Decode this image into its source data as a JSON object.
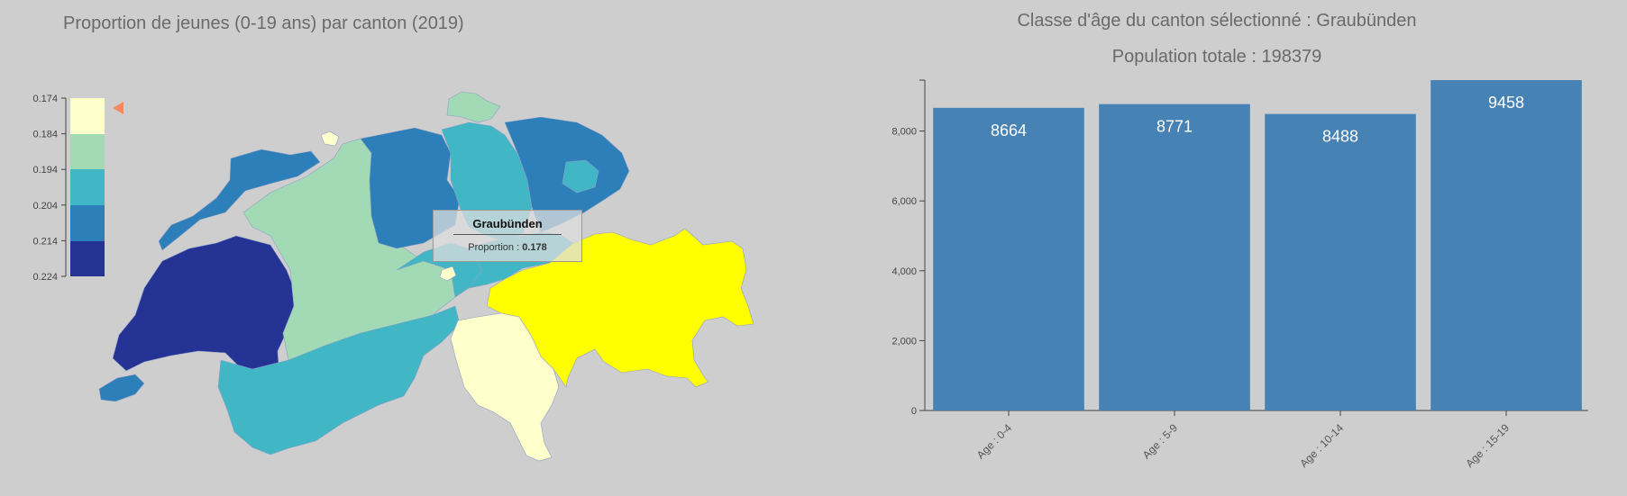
{
  "map": {
    "title": "Proportion de jeunes (0-19 ans) par canton (2019)",
    "legend": {
      "ticks": [
        "0.174",
        "0.184",
        "0.194",
        "0.204",
        "0.214",
        "0.224"
      ],
      "colors": [
        "#ffffcc",
        "#a1dab4",
        "#41b6c4",
        "#2c7fb8",
        "#253494"
      ],
      "marker_color": "#f58a5e",
      "marker_value": 0.178
    },
    "highlight_color": "#ffff00",
    "tooltip": {
      "title": "Graubünden",
      "label": "Proportion : ",
      "value": "0.178"
    }
  },
  "chart": {
    "title_line1": "Classe d'âge du canton sélectionné : Graubünden",
    "title_line2": "Population totale : 198379",
    "bar_color": "#4682b4"
  },
  "chart_data": {
    "type": "bar",
    "categories": [
      "Age : 0-4",
      "Age : 5-9",
      "Age : 10-14",
      "Age : 15-19"
    ],
    "values": [
      8664,
      8771,
      8488,
      9458
    ],
    "ylim": [
      0,
      9458
    ],
    "yticks": [
      "0",
      "2,000",
      "4,000",
      "6,000",
      "8,000"
    ],
    "ytick_values": [
      0,
      2000,
      4000,
      6000,
      8000
    ],
    "title": "Classe d'âge du canton sélectionné : Graubünden",
    "xlabel": "",
    "ylabel": ""
  }
}
